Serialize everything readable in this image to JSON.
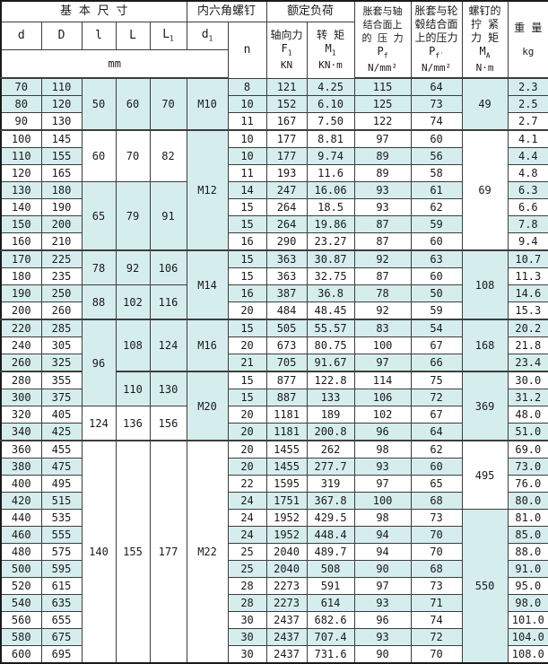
{
  "colors": {
    "stripe": "#d6eded",
    "grid": "#3d3d3d",
    "text": "#1a1a1a",
    "background": "#ffffff"
  },
  "header": {
    "basic_dims": "基 本 尺 寸",
    "hex_screw": "内六角螺钉",
    "rated_load": "额定负荷",
    "col_d": "d",
    "col_D": "D",
    "col_l": "l",
    "col_L": "L",
    "col_L1": {
      "main": "L",
      "sub": "1"
    },
    "col_d1": {
      "main": "d",
      "sub": "1"
    },
    "mm": "mm",
    "n": "n",
    "axial": {
      "label": "轴向力",
      "sym": "F",
      "sub": "1",
      "unit": "KN"
    },
    "torque": {
      "label": "转 矩",
      "sym": "M",
      "sub": "1",
      "unit": "KN·m"
    },
    "pressure_shaft": {
      "l1": "胀套与轴",
      "l2": "结合面上",
      "l3": "的 压 力",
      "sym": "P",
      "sub": "f",
      "unit": "N/mm²"
    },
    "pressure_hub": {
      "l1": "胀套与轮",
      "l2": "毂结合面",
      "l3": "上的压力",
      "sym": "P",
      "sub": "f′",
      "unit": "N/mm²"
    },
    "tightening": {
      "l1": "螺钉的",
      "l2": "拧 紧",
      "l3": "力 矩",
      "sym": "M",
      "sub": "A",
      "unit": "N·m"
    },
    "weight": {
      "label": "重 量",
      "unit": "kg"
    }
  },
  "columns_legend": [
    "d",
    "D",
    "n",
    "axial_force_F1_KN",
    "torque_M1_KNm",
    "pressure_shaft_Pf_Nmm2",
    "pressure_hub_Pf_Nmm2",
    "weight_kg"
  ],
  "rows": [
    [
      "70",
      "110",
      "8",
      "121",
      "4.25",
      "115",
      "64",
      "2.3"
    ],
    [
      "80",
      "120",
      "10",
      "152",
      "6.10",
      "125",
      "73",
      "2.5"
    ],
    [
      "90",
      "130",
      "11",
      "167",
      "7.50",
      "122",
      "74",
      "2.7"
    ],
    [
      "100",
      "145",
      "10",
      "177",
      "8.81",
      "97",
      "60",
      "4.1"
    ],
    [
      "110",
      "155",
      "10",
      "177",
      "9.74",
      "89",
      "56",
      "4.4"
    ],
    [
      "120",
      "165",
      "11",
      "193",
      "11.6",
      "89",
      "58",
      "4.8"
    ],
    [
      "130",
      "180",
      "14",
      "247",
      "16.06",
      "93",
      "61",
      "6.3"
    ],
    [
      "140",
      "190",
      "15",
      "264",
      "18.5",
      "93",
      "62",
      "6.6"
    ],
    [
      "150",
      "200",
      "15",
      "264",
      "19.86",
      "87",
      "59",
      "7.8"
    ],
    [
      "160",
      "210",
      "16",
      "290",
      "23.27",
      "87",
      "60",
      "9.4"
    ],
    [
      "170",
      "225",
      "15",
      "363",
      "30.87",
      "92",
      "63",
      "10.7"
    ],
    [
      "180",
      "235",
      "15",
      "363",
      "32.75",
      "87",
      "60",
      "11.3"
    ],
    [
      "190",
      "250",
      "16",
      "387",
      "36.8",
      "78",
      "50",
      "14.6"
    ],
    [
      "200",
      "260",
      "20",
      "484",
      "48.45",
      "92",
      "59",
      "15.3"
    ],
    [
      "220",
      "285",
      "15",
      "505",
      "55.57",
      "83",
      "54",
      "20.2"
    ],
    [
      "240",
      "305",
      "20",
      "673",
      "80.75",
      "100",
      "67",
      "21.8"
    ],
    [
      "260",
      "325",
      "21",
      "705",
      "91.67",
      "97",
      "66",
      "23.4"
    ],
    [
      "280",
      "355",
      "15",
      "877",
      "122.8",
      "114",
      "75",
      "30.0"
    ],
    [
      "300",
      "375",
      "15",
      "887",
      "133",
      "106",
      "72",
      "31.2"
    ],
    [
      "320",
      "405",
      "20",
      "1181",
      "189",
      "102",
      "67",
      "48.0"
    ],
    [
      "340",
      "425",
      "20",
      "1181",
      "200.8",
      "96",
      "64",
      "51.0"
    ],
    [
      "360",
      "455",
      "20",
      "1455",
      "262",
      "98",
      "62",
      "69.0"
    ],
    [
      "380",
      "475",
      "20",
      "1455",
      "277.7",
      "93",
      "60",
      "73.0"
    ],
    [
      "400",
      "495",
      "22",
      "1595",
      "319",
      "97",
      "65",
      "76.0"
    ],
    [
      "420",
      "515",
      "24",
      "1751",
      "367.8",
      "100",
      "68",
      "80.0"
    ],
    [
      "440",
      "535",
      "24",
      "1952",
      "429.5",
      "98",
      "73",
      "81.0"
    ],
    [
      "460",
      "555",
      "24",
      "1952",
      "448.4",
      "94",
      "70",
      "85.0"
    ],
    [
      "480",
      "575",
      "25",
      "2040",
      "489.7",
      "94",
      "70",
      "88.0"
    ],
    [
      "500",
      "595",
      "25",
      "2040",
      "508",
      "90",
      "68",
      "91.0"
    ],
    [
      "520",
      "615",
      "28",
      "2273",
      "591",
      "97",
      "73",
      "95.0"
    ],
    [
      "540",
      "635",
      "28",
      "2273",
      "614",
      "93",
      "71",
      "98.0"
    ],
    [
      "560",
      "655",
      "30",
      "2437",
      "682.6",
      "96",
      "74",
      "101.0"
    ],
    [
      "580",
      "675",
      "30",
      "2437",
      "707.4",
      "93",
      "72",
      "104.0"
    ],
    [
      "600",
      "695",
      "30",
      "2437",
      "731.6",
      "90",
      "70",
      "108.0"
    ]
  ],
  "shaded_rows": [
    1,
    2,
    5,
    7,
    9,
    11,
    13,
    15,
    17,
    19,
    21,
    23,
    25,
    27,
    29,
    31,
    33
  ],
  "group_end_rows": [
    3,
    10,
    14,
    17,
    21
  ],
  "merges": {
    "l": [
      {
        "start": 1,
        "span": 3,
        "v": "50",
        "bg": "c"
      },
      {
        "start": 4,
        "span": 3,
        "v": "60",
        "bg": "w"
      },
      {
        "start": 7,
        "span": 4,
        "v": "65",
        "bg": "c"
      },
      {
        "start": 11,
        "span": 2,
        "v": "78",
        "bg": "w"
      },
      {
        "start": 13,
        "span": 2,
        "v": "88",
        "bg": "c"
      },
      {
        "start": 15,
        "span": 5,
        "v": "96",
        "bg": "w"
      },
      {
        "start": 20,
        "span": 2,
        "v": "124",
        "bg": "w"
      },
      {
        "start": 22,
        "span": 13,
        "v": "140",
        "bg": "w"
      }
    ],
    "L": [
      {
        "start": 1,
        "span": 3,
        "v": "60",
        "bg": "c"
      },
      {
        "start": 4,
        "span": 3,
        "v": "70",
        "bg": "w"
      },
      {
        "start": 7,
        "span": 4,
        "v": "79",
        "bg": "c"
      },
      {
        "start": 11,
        "span": 2,
        "v": "92",
        "bg": "w"
      },
      {
        "start": 13,
        "span": 2,
        "v": "102",
        "bg": "c"
      },
      {
        "start": 15,
        "span": 3,
        "v": "108",
        "bg": "w"
      },
      {
        "start": 18,
        "span": 2,
        "v": "110",
        "bg": "c"
      },
      {
        "start": 20,
        "span": 2,
        "v": "136",
        "bg": "w"
      },
      {
        "start": 22,
        "span": 13,
        "v": "155",
        "bg": "w"
      }
    ],
    "L1": [
      {
        "start": 1,
        "span": 3,
        "v": "70",
        "bg": "c"
      },
      {
        "start": 4,
        "span": 3,
        "v": "82",
        "bg": "w"
      },
      {
        "start": 7,
        "span": 4,
        "v": "91",
        "bg": "c"
      },
      {
        "start": 11,
        "span": 2,
        "v": "106",
        "bg": "w"
      },
      {
        "start": 13,
        "span": 2,
        "v": "116",
        "bg": "c"
      },
      {
        "start": 15,
        "span": 3,
        "v": "124",
        "bg": "w"
      },
      {
        "start": 18,
        "span": 2,
        "v": "130",
        "bg": "c"
      },
      {
        "start": 20,
        "span": 2,
        "v": "156",
        "bg": "w"
      },
      {
        "start": 22,
        "span": 13,
        "v": "177",
        "bg": "w"
      }
    ],
    "d1": [
      {
        "start": 1,
        "span": 3,
        "v": "M10",
        "bg": "c"
      },
      {
        "start": 4,
        "span": 7,
        "v": "M12",
        "bg": "c"
      },
      {
        "start": 11,
        "span": 4,
        "v": "M14",
        "bg": "c"
      },
      {
        "start": 15,
        "span": 3,
        "v": "M16",
        "bg": "w"
      },
      {
        "start": 18,
        "span": 4,
        "v": "M20",
        "bg": "c"
      },
      {
        "start": 22,
        "span": 13,
        "v": "M22",
        "bg": "w"
      }
    ],
    "ma": [
      {
        "start": 1,
        "span": 3,
        "v": "49",
        "bg": "c"
      },
      {
        "start": 4,
        "span": 7,
        "v": "69",
        "bg": "w"
      },
      {
        "start": 11,
        "span": 4,
        "v": "108",
        "bg": "c"
      },
      {
        "start": 15,
        "span": 3,
        "v": "168",
        "bg": "w"
      },
      {
        "start": 18,
        "span": 4,
        "v": "369",
        "bg": "c"
      },
      {
        "start": 22,
        "span": 4,
        "v": "495",
        "bg": "w"
      },
      {
        "start": 26,
        "span": 9,
        "v": "550",
        "bg": "c"
      }
    ]
  }
}
